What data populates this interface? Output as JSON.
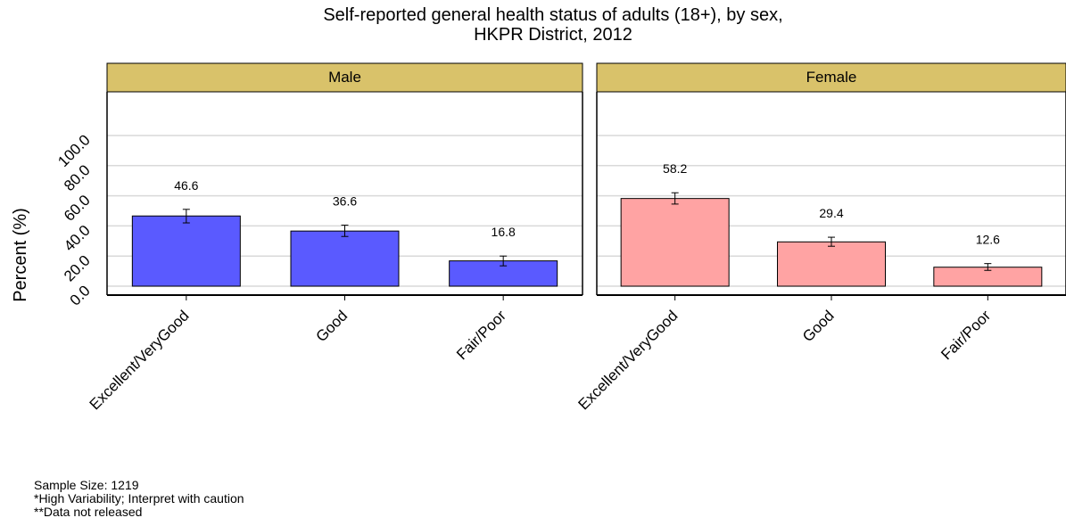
{
  "title": {
    "line1": "Self-reported general health status of adults (18+), by sex,",
    "line2": "HKPR District, 2012"
  },
  "notes": {
    "sample_size": "Sample Size: 1219",
    "high_variability": "*High Variability; Interpret with caution",
    "not_released": "**Data not released"
  },
  "colors": {
    "male_bar": "#5a5aff",
    "female_bar": "#ffa3a3",
    "strip": "#d9c26a",
    "grid": "#d9d9d9"
  },
  "chart_data": {
    "type": "bar",
    "ylabel": "Percent (%)",
    "ylim": [
      0,
      100
    ],
    "yticks": [
      "0.0",
      "20.0",
      "40.0",
      "60.0",
      "80.0",
      "100.0"
    ],
    "grid": true,
    "categories": [
      "Excellent/VeryGood",
      "Good",
      "Fair/Poor"
    ],
    "panels": [
      {
        "name": "Male",
        "values": [
          46.6,
          36.6,
          16.8
        ],
        "labels": [
          "46.6",
          "36.6",
          "16.8"
        ],
        "error_low": [
          42.0,
          33.0,
          13.5
        ],
        "error_high": [
          51.0,
          40.5,
          20.0
        ]
      },
      {
        "name": "Female",
        "values": [
          58.2,
          29.4,
          12.6
        ],
        "labels": [
          "58.2",
          "29.4",
          "12.6"
        ],
        "error_low": [
          54.5,
          26.5,
          10.5
        ],
        "error_high": [
          62.0,
          32.5,
          15.0
        ]
      }
    ]
  }
}
